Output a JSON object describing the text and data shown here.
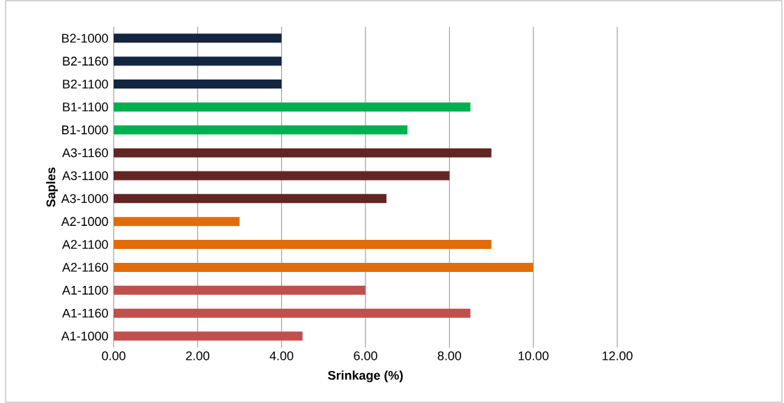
{
  "chart_data": {
    "type": "bar",
    "orientation": "horizontal",
    "xlabel": "Srinkage (%)",
    "ylabel": "Saples",
    "categories": [
      "B2-1000",
      "B2-1160",
      "B2-1100",
      "B1-1100",
      "B1-1000",
      "A3-1160",
      "A3-1100",
      "A3-1000",
      "A2-1000",
      "A2-1100",
      "A2-1160",
      "A1-1100",
      "A1-1160",
      "A1-1000"
    ],
    "values": [
      4,
      4,
      4,
      8.5,
      7,
      9,
      8,
      6.5,
      3,
      9,
      10,
      6,
      8.5,
      4.5
    ],
    "colors": [
      "#14253f",
      "#14253f",
      "#14253f",
      "#00b050",
      "#00b050",
      "#632523",
      "#632523",
      "#632523",
      "#e36c0a",
      "#e36c0a",
      "#e36c0a",
      "#c0504d",
      "#c0504d",
      "#c0504d"
    ],
    "xlim": [
      0,
      12
    ],
    "xticks": [
      {
        "value": 0,
        "label": "0.00"
      },
      {
        "value": 2,
        "label": "2.00"
      },
      {
        "value": 4,
        "label": "4.00"
      },
      {
        "value": 6,
        "label": "6.00"
      },
      {
        "value": 8,
        "label": "8.00"
      },
      {
        "value": 10,
        "label": "10.00"
      },
      {
        "value": 12,
        "label": "12.00"
      }
    ],
    "grid": "x"
  }
}
